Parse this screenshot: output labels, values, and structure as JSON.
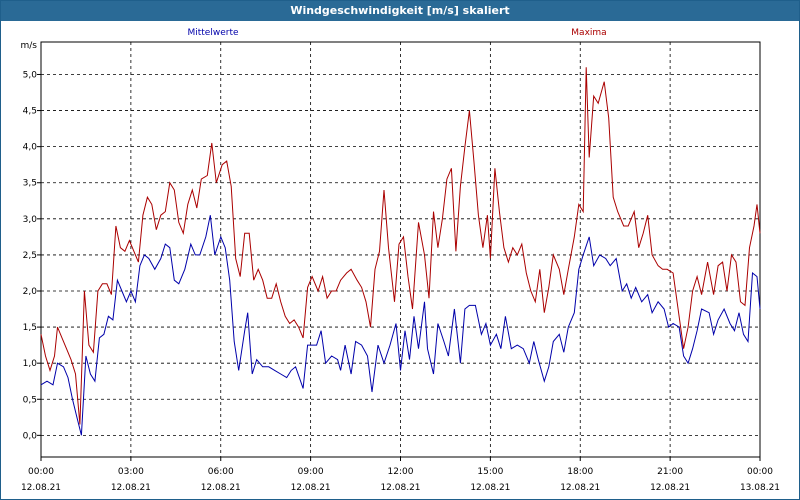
{
  "window": {
    "title": "Windgeschwindigkeit [m/s] skaliert"
  },
  "chart_data": {
    "type": "line",
    "title": "Windgeschwindigkeit [m/s] skaliert",
    "ylabel": "m/s",
    "ylim": [
      -0.3,
      5.45
    ],
    "xlim": [
      0,
      24
    ],
    "y_ticks": [
      "0,0",
      "0,5",
      "1,0",
      "1,5",
      "2,0",
      "2,5",
      "3,0",
      "3,5",
      "4,0",
      "4,5",
      "5,0"
    ],
    "x_tick_times": [
      "00:00",
      "03:00",
      "06:00",
      "09:00",
      "12:00",
      "15:00",
      "18:00",
      "21:00",
      "00:00"
    ],
    "x_tick_dates": [
      "12.08.21",
      "12.08.21",
      "12.08.21",
      "12.08.21",
      "12.08.21",
      "12.08.21",
      "12.08.21",
      "12.08.21",
      "13.08.21"
    ],
    "grid": true,
    "legend_position": "top",
    "series": [
      {
        "name": "Mittelwerte",
        "color": "#0000aa",
        "points": [
          [
            0.0,
            0.7
          ],
          [
            0.2,
            0.75
          ],
          [
            0.4,
            0.7
          ],
          [
            0.55,
            1.0
          ],
          [
            0.75,
            0.95
          ],
          [
            0.9,
            0.8
          ],
          [
            1.05,
            0.5
          ],
          [
            1.2,
            0.25
          ],
          [
            1.35,
            0.0
          ],
          [
            1.5,
            1.1
          ],
          [
            1.65,
            0.85
          ],
          [
            1.8,
            0.75
          ],
          [
            1.95,
            1.35
          ],
          [
            2.1,
            1.4
          ],
          [
            2.25,
            1.65
          ],
          [
            2.4,
            1.6
          ],
          [
            2.55,
            2.15
          ],
          [
            2.7,
            2.0
          ],
          [
            2.85,
            1.85
          ],
          [
            3.0,
            2.0
          ],
          [
            3.15,
            1.85
          ],
          [
            3.3,
            2.35
          ],
          [
            3.45,
            2.5
          ],
          [
            3.6,
            2.45
          ],
          [
            3.8,
            2.3
          ],
          [
            4.0,
            2.45
          ],
          [
            4.15,
            2.65
          ],
          [
            4.3,
            2.6
          ],
          [
            4.45,
            2.15
          ],
          [
            4.6,
            2.1
          ],
          [
            4.8,
            2.3
          ],
          [
            5.0,
            2.65
          ],
          [
            5.15,
            2.5
          ],
          [
            5.3,
            2.5
          ],
          [
            5.5,
            2.75
          ],
          [
            5.65,
            3.05
          ],
          [
            5.8,
            2.5
          ],
          [
            6.0,
            2.75
          ],
          [
            6.15,
            2.6
          ],
          [
            6.3,
            2.15
          ],
          [
            6.45,
            1.3
          ],
          [
            6.6,
            0.9
          ],
          [
            6.8,
            1.45
          ],
          [
            6.9,
            1.7
          ],
          [
            7.05,
            0.85
          ],
          [
            7.2,
            1.05
          ],
          [
            7.4,
            0.95
          ],
          [
            7.6,
            0.95
          ],
          [
            7.8,
            0.9
          ],
          [
            8.0,
            0.85
          ],
          [
            8.2,
            0.8
          ],
          [
            8.35,
            0.9
          ],
          [
            8.5,
            0.95
          ],
          [
            8.75,
            0.65
          ],
          [
            8.9,
            1.25
          ],
          [
            9.2,
            1.25
          ],
          [
            9.35,
            1.45
          ],
          [
            9.5,
            1.0
          ],
          [
            9.7,
            1.1
          ],
          [
            9.9,
            1.05
          ],
          [
            10.0,
            0.9
          ],
          [
            10.15,
            1.25
          ],
          [
            10.35,
            0.85
          ],
          [
            10.5,
            1.3
          ],
          [
            10.7,
            1.25
          ],
          [
            10.9,
            1.1
          ],
          [
            11.05,
            0.6
          ],
          [
            11.25,
            1.25
          ],
          [
            11.45,
            1.0
          ],
          [
            11.65,
            1.25
          ],
          [
            11.85,
            1.55
          ],
          [
            12.0,
            0.9
          ],
          [
            12.15,
            1.45
          ],
          [
            12.3,
            1.05
          ],
          [
            12.45,
            1.65
          ],
          [
            12.6,
            1.2
          ],
          [
            12.8,
            1.85
          ],
          [
            12.9,
            1.2
          ],
          [
            13.1,
            0.85
          ],
          [
            13.25,
            1.55
          ],
          [
            13.45,
            1.3
          ],
          [
            13.6,
            1.1
          ],
          [
            13.8,
            1.75
          ],
          [
            14.0,
            1.0
          ],
          [
            14.15,
            1.75
          ],
          [
            14.3,
            1.8
          ],
          [
            14.5,
            1.8
          ],
          [
            14.7,
            1.4
          ],
          [
            14.85,
            1.55
          ],
          [
            15.0,
            1.25
          ],
          [
            15.2,
            1.4
          ],
          [
            15.35,
            1.2
          ],
          [
            15.5,
            1.65
          ],
          [
            15.7,
            1.2
          ],
          [
            15.9,
            1.25
          ],
          [
            16.1,
            1.2
          ],
          [
            16.3,
            1.0
          ],
          [
            16.45,
            1.3
          ],
          [
            16.6,
            1.05
          ],
          [
            16.8,
            0.75
          ],
          [
            16.95,
            0.95
          ],
          [
            17.1,
            1.3
          ],
          [
            17.3,
            1.4
          ],
          [
            17.45,
            1.15
          ],
          [
            17.6,
            1.5
          ],
          [
            17.8,
            1.7
          ],
          [
            17.95,
            2.3
          ],
          [
            18.1,
            2.5
          ],
          [
            18.3,
            2.75
          ],
          [
            18.45,
            2.35
          ],
          [
            18.65,
            2.5
          ],
          [
            18.85,
            2.45
          ],
          [
            19.0,
            2.35
          ],
          [
            19.2,
            2.45
          ],
          [
            19.4,
            2.0
          ],
          [
            19.55,
            2.1
          ],
          [
            19.7,
            1.9
          ],
          [
            19.85,
            2.05
          ],
          [
            20.05,
            1.85
          ],
          [
            20.25,
            1.95
          ],
          [
            20.4,
            1.7
          ],
          [
            20.6,
            1.85
          ],
          [
            20.8,
            1.75
          ],
          [
            20.95,
            1.5
          ],
          [
            21.1,
            1.55
          ],
          [
            21.3,
            1.5
          ],
          [
            21.45,
            1.1
          ],
          [
            21.6,
            1.0
          ],
          [
            21.75,
            1.2
          ],
          [
            21.9,
            1.45
          ],
          [
            22.05,
            1.75
          ],
          [
            22.3,
            1.7
          ],
          [
            22.45,
            1.4
          ],
          [
            22.6,
            1.6
          ],
          [
            22.8,
            1.75
          ],
          [
            23.0,
            1.55
          ],
          [
            23.15,
            1.45
          ],
          [
            23.3,
            1.7
          ],
          [
            23.45,
            1.4
          ],
          [
            23.6,
            1.3
          ],
          [
            23.75,
            2.25
          ],
          [
            23.9,
            2.2
          ],
          [
            24.0,
            1.75
          ]
        ]
      },
      {
        "name": "Maxima",
        "color": "#aa0000",
        "points": [
          [
            0.0,
            1.4
          ],
          [
            0.15,
            1.1
          ],
          [
            0.3,
            0.9
          ],
          [
            0.45,
            1.1
          ],
          [
            0.55,
            1.5
          ],
          [
            0.7,
            1.35
          ],
          [
            0.85,
            1.2
          ],
          [
            1.0,
            1.05
          ],
          [
            1.15,
            0.85
          ],
          [
            1.3,
            0.15
          ],
          [
            1.45,
            2.0
          ],
          [
            1.6,
            1.25
          ],
          [
            1.75,
            1.15
          ],
          [
            1.9,
            2.0
          ],
          [
            2.05,
            2.1
          ],
          [
            2.2,
            2.1
          ],
          [
            2.35,
            1.95
          ],
          [
            2.5,
            2.9
          ],
          [
            2.65,
            2.6
          ],
          [
            2.8,
            2.55
          ],
          [
            2.95,
            2.7
          ],
          [
            3.1,
            2.55
          ],
          [
            3.25,
            2.4
          ],
          [
            3.4,
            3.05
          ],
          [
            3.55,
            3.3
          ],
          [
            3.7,
            3.2
          ],
          [
            3.85,
            2.85
          ],
          [
            4.0,
            3.05
          ],
          [
            4.15,
            3.1
          ],
          [
            4.3,
            3.5
          ],
          [
            4.45,
            3.4
          ],
          [
            4.6,
            2.95
          ],
          [
            4.75,
            2.8
          ],
          [
            4.9,
            3.2
          ],
          [
            5.05,
            3.4
          ],
          [
            5.2,
            3.15
          ],
          [
            5.35,
            3.55
          ],
          [
            5.55,
            3.6
          ],
          [
            5.7,
            4.05
          ],
          [
            5.85,
            3.5
          ],
          [
            6.05,
            3.75
          ],
          [
            6.2,
            3.8
          ],
          [
            6.35,
            3.45
          ],
          [
            6.5,
            2.45
          ],
          [
            6.65,
            2.2
          ],
          [
            6.8,
            2.8
          ],
          [
            6.95,
            2.8
          ],
          [
            7.1,
            2.15
          ],
          [
            7.25,
            2.3
          ],
          [
            7.4,
            2.15
          ],
          [
            7.55,
            1.9
          ],
          [
            7.7,
            1.9
          ],
          [
            7.85,
            2.1
          ],
          [
            8.0,
            1.85
          ],
          [
            8.15,
            1.65
          ],
          [
            8.3,
            1.55
          ],
          [
            8.45,
            1.6
          ],
          [
            8.6,
            1.5
          ],
          [
            8.75,
            1.35
          ],
          [
            8.9,
            2.05
          ],
          [
            9.05,
            2.2
          ],
          [
            9.25,
            2.0
          ],
          [
            9.4,
            2.2
          ],
          [
            9.55,
            1.9
          ],
          [
            9.7,
            2.0
          ],
          [
            9.85,
            2.0
          ],
          [
            10.0,
            2.15
          ],
          [
            10.2,
            2.25
          ],
          [
            10.35,
            2.3
          ],
          [
            10.55,
            2.15
          ],
          [
            10.7,
            2.05
          ],
          [
            10.85,
            1.85
          ],
          [
            11.0,
            1.5
          ],
          [
            11.15,
            2.3
          ],
          [
            11.3,
            2.55
          ],
          [
            11.45,
            3.4
          ],
          [
            11.6,
            2.6
          ],
          [
            11.8,
            1.85
          ],
          [
            11.95,
            2.65
          ],
          [
            12.1,
            2.75
          ],
          [
            12.25,
            2.2
          ],
          [
            12.4,
            1.75
          ],
          [
            12.6,
            2.95
          ],
          [
            12.8,
            2.5
          ],
          [
            12.95,
            1.9
          ],
          [
            13.1,
            3.1
          ],
          [
            13.25,
            2.6
          ],
          [
            13.4,
            3.0
          ],
          [
            13.55,
            3.55
          ],
          [
            13.7,
            3.7
          ],
          [
            13.85,
            2.55
          ],
          [
            14.0,
            3.45
          ],
          [
            14.15,
            4.0
          ],
          [
            14.3,
            4.5
          ],
          [
            14.45,
            3.8
          ],
          [
            14.6,
            3.05
          ],
          [
            14.75,
            2.6
          ],
          [
            14.9,
            3.05
          ],
          [
            15.0,
            2.45
          ],
          [
            15.15,
            3.7
          ],
          [
            15.3,
            3.1
          ],
          [
            15.45,
            2.6
          ],
          [
            15.6,
            2.4
          ],
          [
            15.75,
            2.6
          ],
          [
            15.9,
            2.5
          ],
          [
            16.05,
            2.65
          ],
          [
            16.2,
            2.25
          ],
          [
            16.35,
            2.0
          ],
          [
            16.5,
            1.85
          ],
          [
            16.65,
            2.3
          ],
          [
            16.8,
            1.7
          ],
          [
            16.95,
            2.05
          ],
          [
            17.1,
            2.5
          ],
          [
            17.3,
            2.3
          ],
          [
            17.45,
            1.95
          ],
          [
            17.6,
            2.3
          ],
          [
            17.8,
            2.75
          ],
          [
            17.95,
            3.2
          ],
          [
            18.1,
            3.1
          ],
          [
            18.2,
            5.1
          ],
          [
            18.3,
            3.85
          ],
          [
            18.45,
            4.7
          ],
          [
            18.6,
            4.6
          ],
          [
            18.8,
            4.9
          ],
          [
            18.95,
            4.4
          ],
          [
            19.1,
            3.3
          ],
          [
            19.25,
            3.1
          ],
          [
            19.45,
            2.9
          ],
          [
            19.6,
            2.9
          ],
          [
            19.8,
            3.1
          ],
          [
            19.95,
            2.6
          ],
          [
            20.1,
            2.8
          ],
          [
            20.25,
            3.05
          ],
          [
            20.4,
            2.5
          ],
          [
            20.6,
            2.35
          ],
          [
            20.75,
            2.3
          ],
          [
            20.9,
            2.3
          ],
          [
            21.1,
            2.25
          ],
          [
            21.3,
            1.65
          ],
          [
            21.45,
            1.2
          ],
          [
            21.6,
            1.5
          ],
          [
            21.75,
            2.0
          ],
          [
            21.9,
            2.2
          ],
          [
            22.05,
            1.95
          ],
          [
            22.25,
            2.4
          ],
          [
            22.45,
            1.95
          ],
          [
            22.6,
            2.35
          ],
          [
            22.75,
            2.4
          ],
          [
            22.9,
            2.0
          ],
          [
            23.05,
            2.5
          ],
          [
            23.2,
            2.4
          ],
          [
            23.35,
            1.85
          ],
          [
            23.5,
            1.8
          ],
          [
            23.65,
            2.6
          ],
          [
            23.8,
            2.9
          ],
          [
            23.9,
            3.2
          ],
          [
            24.0,
            2.8
          ]
        ]
      }
    ]
  }
}
